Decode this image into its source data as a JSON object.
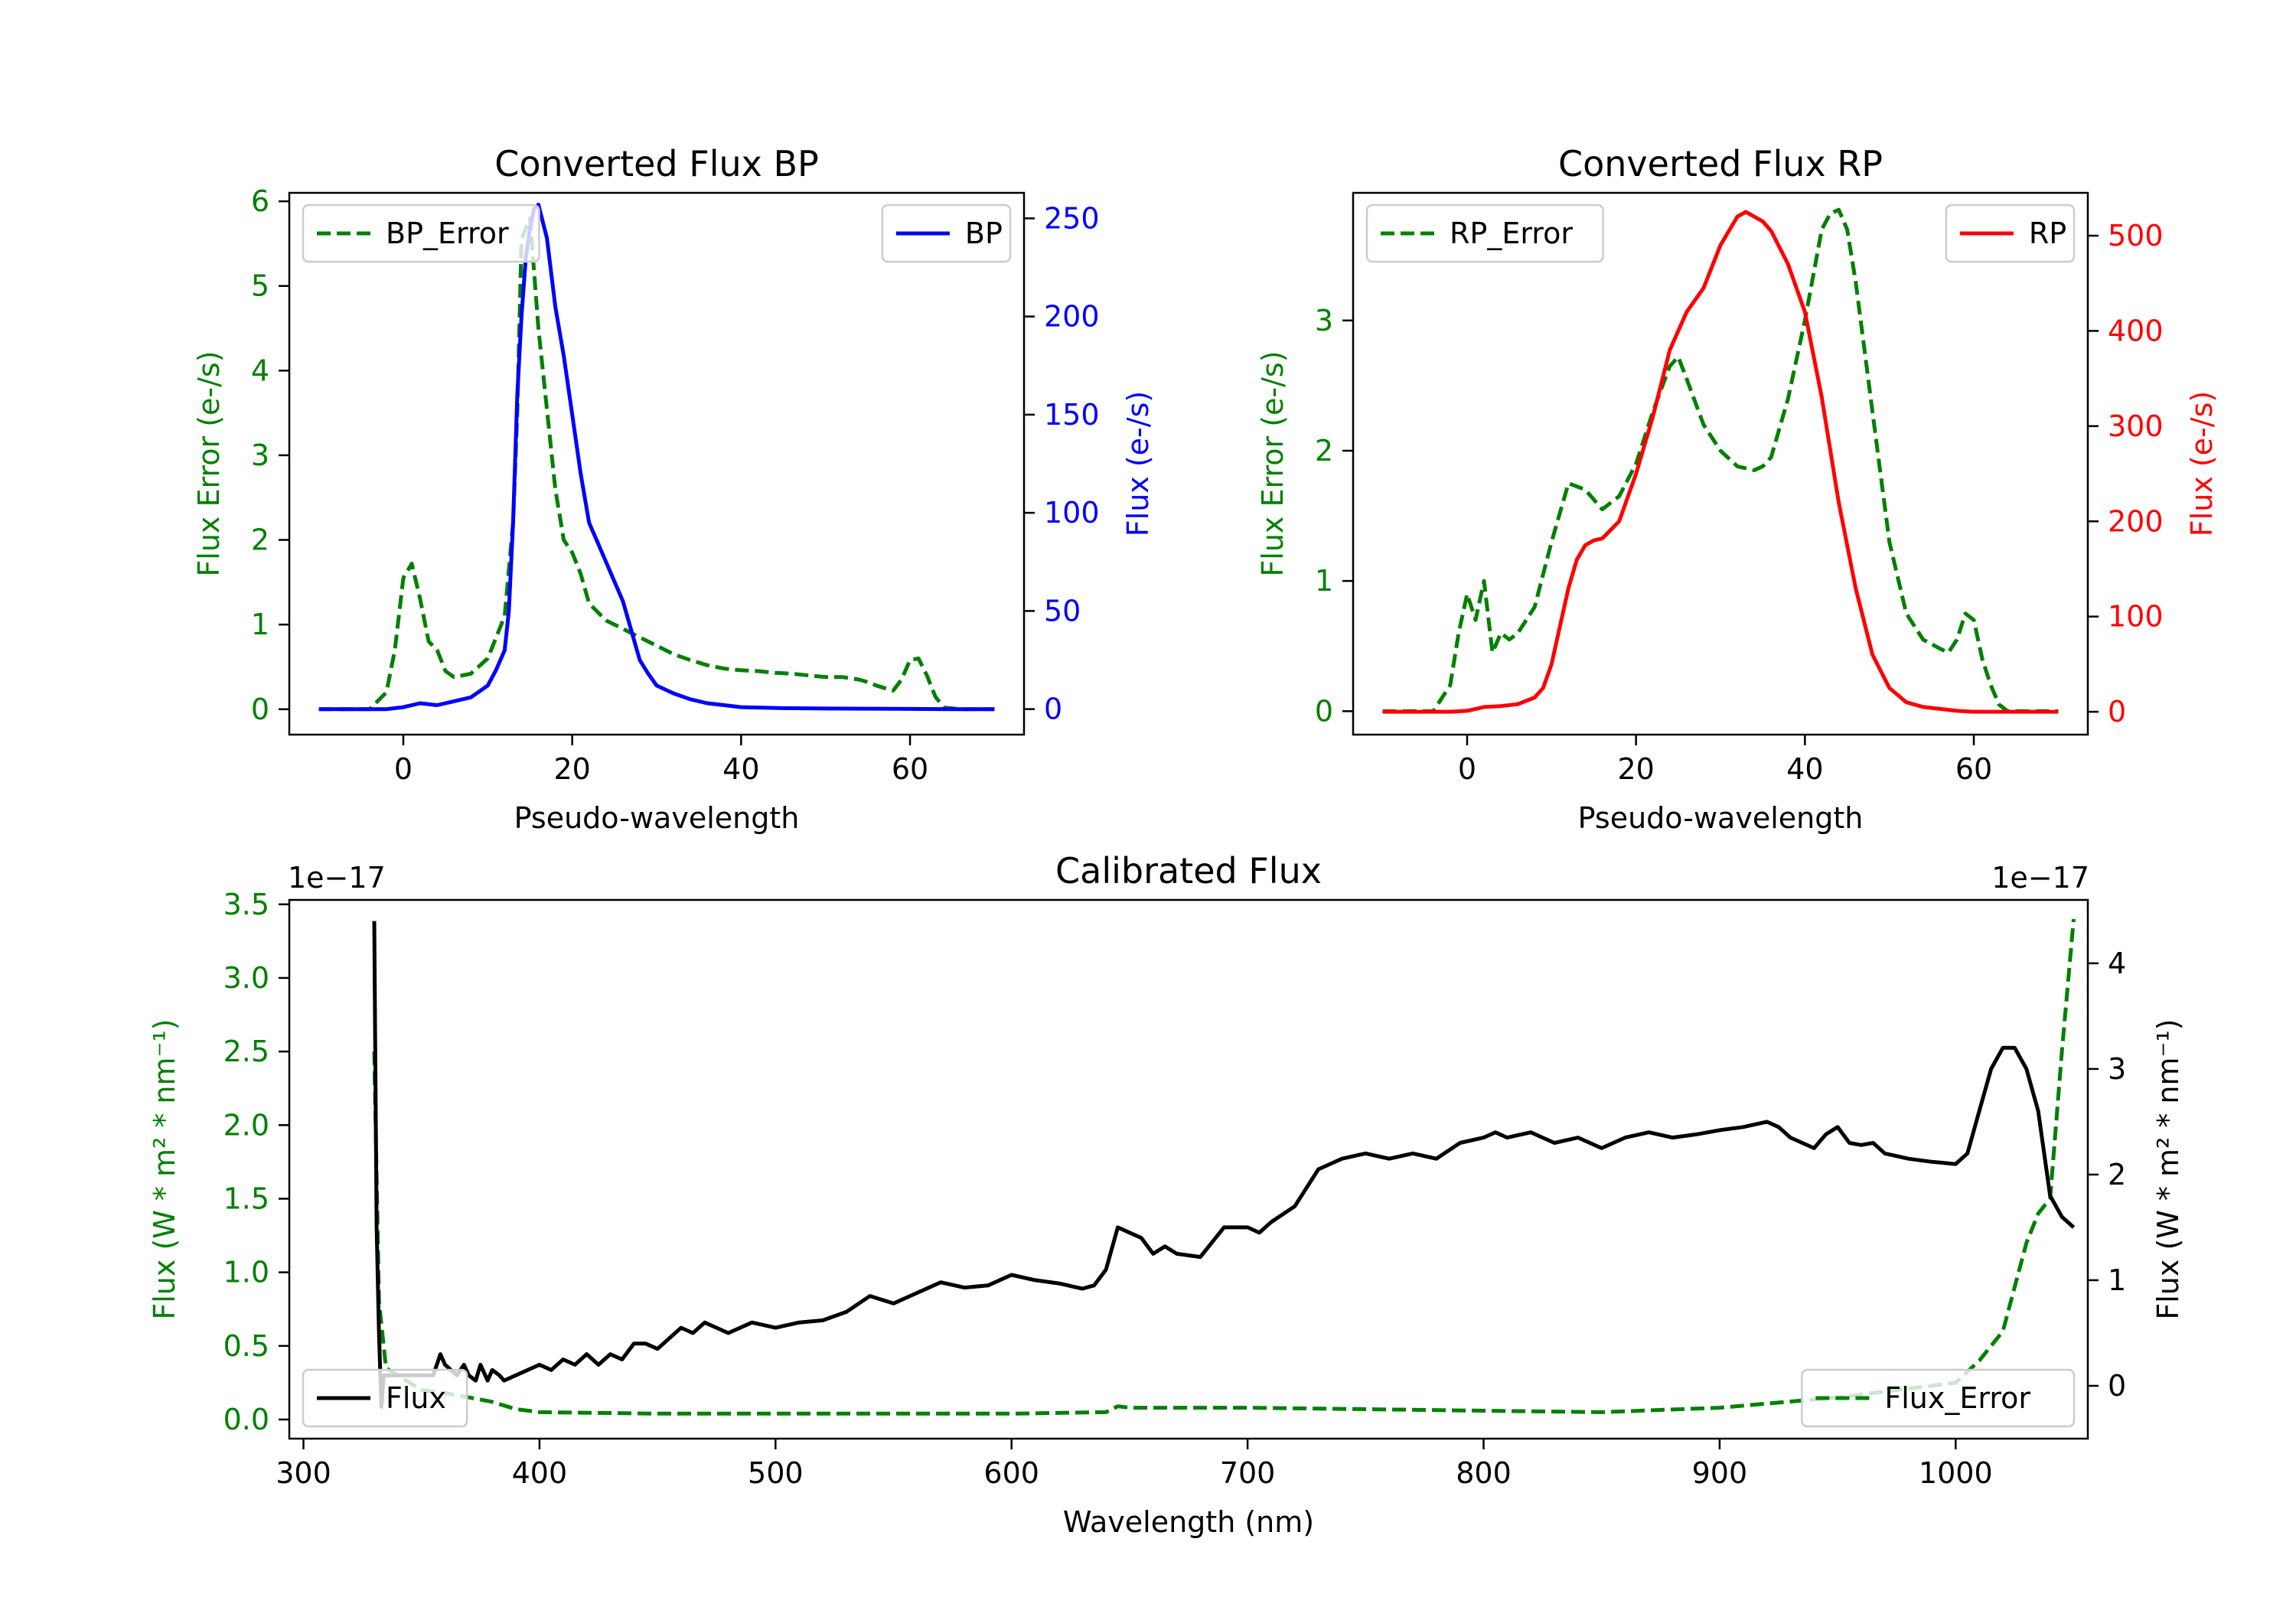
{
  "colors": {
    "error": "#008000",
    "bp": "#0000ff",
    "rp": "#ff0000",
    "flux": "#000000",
    "axis": "#000000"
  },
  "chart_data": [
    {
      "type": "line",
      "title": "Converted Flux BP",
      "xlabel": "Pseudo-wavelength",
      "ylabel_left": "Flux Error (e-/s)",
      "ylabel_right": "Flux (e-/s)",
      "xlim": [
        -13.5,
        73.5
      ],
      "ylim_left": [
        -0.3,
        6.1
      ],
      "ylim_right": [
        -13,
        263
      ],
      "x_ticks": [
        0,
        20,
        40,
        60
      ],
      "y_ticks_left": [
        0,
        1,
        2,
        3,
        4,
        5,
        6
      ],
      "y_ticks_right": [
        0,
        50,
        100,
        150,
        200,
        250
      ],
      "legend_left": {
        "position": "upper left",
        "label": "BP_Error"
      },
      "legend_right": {
        "position": "upper right",
        "label": "BP"
      },
      "series": [
        {
          "name": "BP_Error",
          "axis": "left",
          "style": "dashed",
          "color": "error",
          "x": [
            -10,
            -4,
            -2,
            -1,
            0,
            1,
            2,
            3,
            4,
            5,
            6,
            8,
            10,
            12,
            13,
            13.5,
            14,
            15,
            16,
            18,
            19,
            20,
            21,
            22,
            24,
            26,
            28,
            30,
            32,
            34,
            36,
            38,
            40,
            42,
            44,
            46,
            48,
            50,
            52,
            54,
            55,
            56,
            57,
            58,
            59,
            60,
            61,
            62,
            63,
            64,
            66,
            70
          ],
          "y": [
            0,
            0,
            0.2,
            0.7,
            1.55,
            1.72,
            1.3,
            0.8,
            0.7,
            0.45,
            0.38,
            0.42,
            0.6,
            1.1,
            2.2,
            3.5,
            5.55,
            5.8,
            4.5,
            2.6,
            2.0,
            1.85,
            1.6,
            1.25,
            1.05,
            0.95,
            0.85,
            0.75,
            0.65,
            0.58,
            0.52,
            0.48,
            0.46,
            0.45,
            0.43,
            0.42,
            0.4,
            0.38,
            0.38,
            0.35,
            0.32,
            0.28,
            0.25,
            0.22,
            0.35,
            0.58,
            0.6,
            0.4,
            0.15,
            0.02,
            0,
            0
          ]
        },
        {
          "name": "BP",
          "axis": "right",
          "style": "solid",
          "color": "bp",
          "x": [
            -10,
            -2,
            0,
            2,
            4,
            6,
            8,
            10,
            11,
            12,
            12.5,
            13,
            13.5,
            14,
            14.5,
            15,
            15.5,
            16,
            17,
            18,
            19,
            20,
            21,
            22,
            23,
            24,
            25,
            26,
            27,
            28,
            29,
            30,
            32,
            34,
            36,
            38,
            40,
            45,
            50,
            55,
            60,
            65,
            70
          ],
          "y": [
            0,
            0,
            1,
            3,
            2,
            4,
            6,
            12,
            20,
            30,
            50,
            95,
            160,
            200,
            230,
            245,
            255,
            257,
            240,
            205,
            180,
            150,
            120,
            95,
            85,
            75,
            65,
            55,
            40,
            25,
            18,
            12,
            8,
            5,
            3,
            2,
            1,
            0.5,
            0.3,
            0.2,
            0.1,
            0,
            0
          ]
        }
      ]
    },
    {
      "type": "line",
      "title": "Converted Flux RP",
      "xlabel": "Pseudo-wavelength",
      "ylabel_left": "Flux Error (e-/s)",
      "ylabel_right": "Flux (e-/s)",
      "xlim": [
        -13.5,
        73.5
      ],
      "ylim_left": [
        -0.18,
        3.98
      ],
      "ylim_right": [
        -24,
        545
      ],
      "x_ticks": [
        0,
        20,
        40,
        60
      ],
      "y_ticks_left": [
        0,
        1,
        2,
        3
      ],
      "y_ticks_right": [
        0,
        100,
        200,
        300,
        400,
        500
      ],
      "legend_left": {
        "position": "upper left",
        "label": "RP_Error"
      },
      "legend_right": {
        "position": "upper right",
        "label": "RP"
      },
      "series": [
        {
          "name": "RP_Error",
          "axis": "left",
          "style": "dashed",
          "color": "error",
          "x": [
            -10,
            -4,
            -2,
            -1,
            0,
            1,
            2,
            3,
            4,
            5,
            6,
            8,
            10,
            12,
            14,
            16,
            18,
            20,
            22,
            24,
            25,
            26,
            28,
            30,
            32,
            34,
            35,
            36,
            38,
            40,
            42,
            43,
            44,
            45,
            46,
            48,
            50,
            52,
            54,
            56,
            57,
            58,
            59,
            60,
            61,
            62,
            63,
            64,
            66,
            70
          ],
          "y": [
            0,
            0,
            0.2,
            0.6,
            0.9,
            0.7,
            1.0,
            0.45,
            0.6,
            0.55,
            0.6,
            0.8,
            1.3,
            1.75,
            1.7,
            1.55,
            1.65,
            1.9,
            2.3,
            2.65,
            2.72,
            2.55,
            2.2,
            2.0,
            1.88,
            1.85,
            1.88,
            1.95,
            2.4,
            3.0,
            3.7,
            3.82,
            3.85,
            3.7,
            3.3,
            2.3,
            1.3,
            0.75,
            0.55,
            0.48,
            0.45,
            0.55,
            0.75,
            0.7,
            0.4,
            0.2,
            0.05,
            0,
            0,
            0
          ]
        },
        {
          "name": "RP",
          "axis": "right",
          "style": "solid",
          "color": "rp",
          "x": [
            -10,
            -2,
            0,
            2,
            4,
            6,
            8,
            9,
            10,
            11,
            12,
            13,
            14,
            15,
            16,
            18,
            20,
            22,
            24,
            26,
            28,
            30,
            32,
            33,
            34,
            35,
            36,
            38,
            40,
            42,
            44,
            46,
            48,
            50,
            52,
            54,
            56,
            58,
            60,
            64,
            70
          ],
          "y": [
            0,
            0,
            1,
            5,
            6,
            8,
            15,
            25,
            50,
            90,
            130,
            160,
            175,
            180,
            182,
            200,
            250,
            310,
            380,
            420,
            445,
            490,
            520,
            525,
            520,
            515,
            505,
            470,
            420,
            330,
            220,
            130,
            60,
            25,
            10,
            5,
            3,
            1,
            0,
            0,
            0
          ]
        }
      ]
    },
    {
      "type": "line",
      "title": "Calibrated Flux",
      "xlabel": "Wavelength (nm)",
      "ylabel_left": "Flux (W * m² * nm⁻¹)",
      "ylabel_right": "Flux (W * m² * nm⁻¹)",
      "offset_left": "1e−17",
      "offset_right": "1e−17",
      "xlim": [
        294,
        1056
      ],
      "ylim_left": [
        -0.13,
        3.53
      ],
      "ylim_right": [
        -0.5,
        4.6
      ],
      "x_ticks": [
        300,
        400,
        500,
        600,
        700,
        800,
        900,
        1000
      ],
      "y_ticks_left": [
        0.0,
        0.5,
        1.0,
        1.5,
        2.0,
        2.5,
        3.0,
        3.5
      ],
      "y_ticks_right": [
        0,
        1,
        2,
        3,
        4
      ],
      "legend_left": {
        "position": "lower left",
        "label": "Flux"
      },
      "legend_right": {
        "position": "lower right",
        "label": "Flux_Error"
      },
      "series": [
        {
          "name": "Flux_Error",
          "axis": "left",
          "style": "dashed",
          "color": "error",
          "x": [
            330,
            332,
            335,
            340,
            345,
            350,
            360,
            370,
            380,
            390,
            400,
            450,
            500,
            550,
            600,
            640,
            645,
            650,
            700,
            750,
            800,
            850,
            900,
            950,
            1000,
            1010,
            1015,
            1020,
            1025,
            1030,
            1035,
            1040,
            1045,
            1050
          ],
          "y": [
            2.5,
            0.8,
            0.35,
            0.3,
            0.25,
            0.2,
            0.18,
            0.15,
            0.12,
            0.07,
            0.05,
            0.04,
            0.04,
            0.04,
            0.04,
            0.05,
            0.09,
            0.08,
            0.08,
            0.07,
            0.06,
            0.05,
            0.08,
            0.15,
            0.25,
            0.4,
            0.5,
            0.6,
            0.9,
            1.2,
            1.4,
            1.5,
            2.5,
            3.4
          ]
        },
        {
          "name": "Flux",
          "axis": "right",
          "style": "solid",
          "color": "flux",
          "x": [
            330,
            331,
            332,
            333,
            334,
            335,
            340,
            350,
            355,
            358,
            360,
            365,
            368,
            370,
            373,
            375,
            378,
            380,
            383,
            385,
            390,
            400,
            405,
            410,
            415,
            420,
            425,
            430,
            435,
            440,
            445,
            450,
            455,
            460,
            465,
            470,
            475,
            480,
            490,
            500,
            510,
            520,
            530,
            540,
            550,
            560,
            570,
            580,
            590,
            600,
            610,
            620,
            630,
            635,
            640,
            645,
            650,
            655,
            660,
            665,
            670,
            680,
            690,
            700,
            705,
            710,
            720,
            730,
            735,
            740,
            750,
            760,
            770,
            780,
            790,
            800,
            805,
            810,
            820,
            825,
            830,
            840,
            850,
            860,
            870,
            880,
            890,
            900,
            910,
            920,
            925,
            930,
            940,
            945,
            950,
            955,
            960,
            965,
            970,
            980,
            990,
            1000,
            1005,
            1010,
            1015,
            1020,
            1025,
            1030,
            1035,
            1040,
            1045,
            1050
          ],
          "y": [
            4.4,
            1.5,
            0.5,
            -0.2,
            0.1,
            0.1,
            0.1,
            0.1,
            0.1,
            0.3,
            0.2,
            0.1,
            0.2,
            0.1,
            0.05,
            0.2,
            0.05,
            0.15,
            0.1,
            0.05,
            0.1,
            0.2,
            0.15,
            0.25,
            0.2,
            0.3,
            0.2,
            0.3,
            0.25,
            0.4,
            0.4,
            0.35,
            0.45,
            0.55,
            0.5,
            0.6,
            0.55,
            0.5,
            0.6,
            0.55,
            0.6,
            0.62,
            0.7,
            0.85,
            0.78,
            0.88,
            0.98,
            0.93,
            0.95,
            1.05,
            1.0,
            0.97,
            0.92,
            0.95,
            1.1,
            1.5,
            1.45,
            1.4,
            1.25,
            1.32,
            1.25,
            1.22,
            1.5,
            1.5,
            1.45,
            1.55,
            1.7,
            2.05,
            2.1,
            2.15,
            2.2,
            2.15,
            2.2,
            2.15,
            2.3,
            2.35,
            2.4,
            2.35,
            2.4,
            2.35,
            2.3,
            2.35,
            2.25,
            2.35,
            2.4,
            2.35,
            2.38,
            2.42,
            2.45,
            2.5,
            2.45,
            2.35,
            2.25,
            2.38,
            2.45,
            2.3,
            2.28,
            2.3,
            2.2,
            2.15,
            2.12,
            2.1,
            2.2,
            2.6,
            3.0,
            3.2,
            3.2,
            3.0,
            2.6,
            1.8,
            1.6,
            1.5
          ]
        }
      ]
    }
  ]
}
